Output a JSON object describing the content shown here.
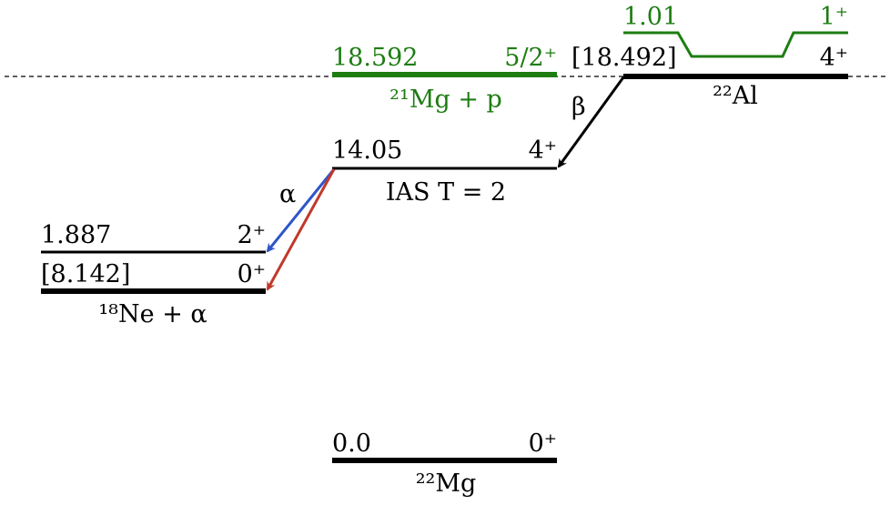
{
  "levels": [
    {
      "energy": "18.592",
      "spin": "5/2⁺",
      "label": "²¹Mg + p"
    },
    {
      "energy": "[18.492]",
      "spin": "4⁺",
      "label": "²²Al"
    },
    {
      "energy": "1.01",
      "spin": "1⁺"
    },
    {
      "energy": "14.05",
      "spin": "4⁺",
      "label": "IAS T = 2"
    },
    {
      "energy": "1.887",
      "spin": "2⁺"
    },
    {
      "energy": "[8.142]",
      "spin": "0⁺",
      "label": "¹⁸Ne + α"
    },
    {
      "energy": "0.0",
      "spin": "0⁺",
      "label": "²²Mg"
    }
  ],
  "transitions": [
    {
      "label": "β"
    },
    {
      "label": "α"
    }
  ]
}
